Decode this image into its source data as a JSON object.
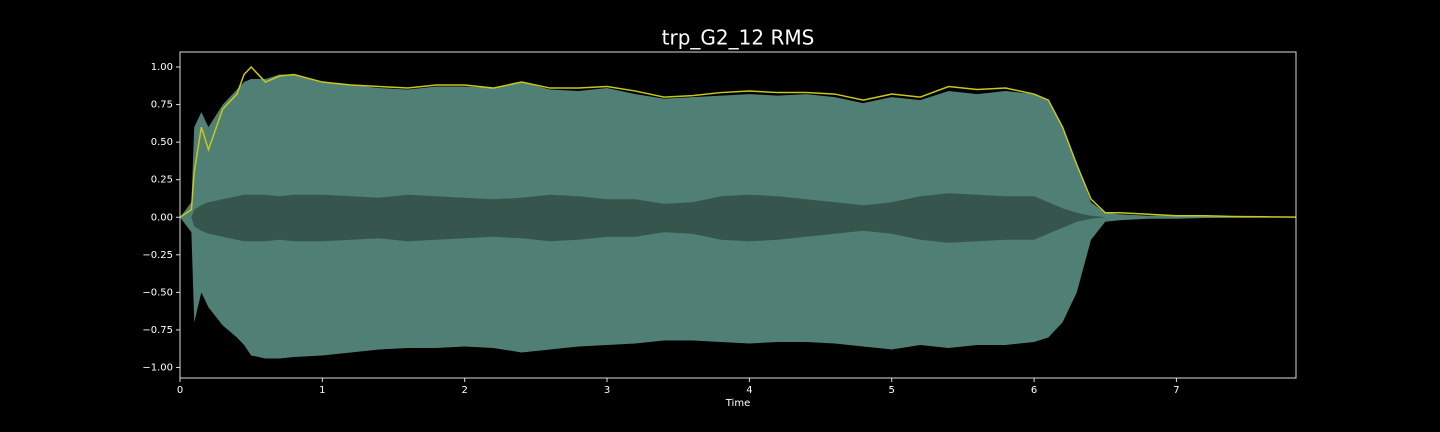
{
  "chart_data": {
    "type": "line",
    "title": "trp_G2_12 RMS",
    "x_label": "Time",
    "x": [
      0,
      0.08,
      0.1,
      0.15,
      0.2,
      0.3,
      0.4,
      0.45,
      0.5,
      0.6,
      0.7,
      0.8,
      1.0,
      1.2,
      1.4,
      1.6,
      1.8,
      2.0,
      2.2,
      2.4,
      2.6,
      2.8,
      3.0,
      3.2,
      3.4,
      3.6,
      3.8,
      4.0,
      4.2,
      4.4,
      4.6,
      4.8,
      5.0,
      5.2,
      5.4,
      5.6,
      5.8,
      6.0,
      6.1,
      6.2,
      6.3,
      6.4,
      6.5,
      6.6,
      6.8,
      7.0,
      7.2,
      7.4,
      7.6,
      7.84
    ],
    "xlim": [
      0,
      7.84
    ],
    "xticks": [
      0,
      1,
      2,
      3,
      4,
      5,
      6,
      7
    ],
    "ylim": [
      -1.07,
      1.1
    ],
    "yticks": [
      {
        "value": -1,
        "label": "−1.00"
      },
      {
        "value": -0.75,
        "label": "−0.75"
      },
      {
        "value": -0.5,
        "label": "−0.50"
      },
      {
        "value": -0.25,
        "label": "−0.25"
      },
      {
        "value": 0,
        "label": "0.00"
      },
      {
        "value": 0.25,
        "label": "0.25"
      },
      {
        "value": 0.5,
        "label": "0.50"
      },
      {
        "value": 0.75,
        "label": "0.75"
      },
      {
        "value": 1,
        "label": "1.00"
      }
    ],
    "grid": false,
    "bands": [
      {
        "color": "#4f7f75",
        "upper": [
          0,
          0.1,
          0.6,
          0.7,
          0.6,
          0.75,
          0.85,
          0.9,
          0.92,
          0.92,
          0.95,
          0.95,
          0.9,
          0.88,
          0.86,
          0.85,
          0.87,
          0.87,
          0.86,
          0.9,
          0.85,
          0.84,
          0.86,
          0.82,
          0.79,
          0.8,
          0.81,
          0.82,
          0.81,
          0.82,
          0.8,
          0.76,
          0.8,
          0.78,
          0.84,
          0.82,
          0.84,
          0.82,
          0.78,
          0.6,
          0.35,
          0.1,
          0.03,
          0.02,
          0.01,
          0.01,
          0.005,
          0.004,
          0.003,
          0.001
        ],
        "lower": [
          0,
          -0.1,
          -0.7,
          -0.5,
          -0.6,
          -0.72,
          -0.8,
          -0.85,
          -0.92,
          -0.94,
          -0.94,
          -0.93,
          -0.92,
          -0.9,
          -0.88,
          -0.87,
          -0.87,
          -0.86,
          -0.87,
          -0.9,
          -0.88,
          -0.86,
          -0.85,
          -0.84,
          -0.82,
          -0.82,
          -0.83,
          -0.84,
          -0.83,
          -0.83,
          -0.84,
          -0.86,
          -0.88,
          -0.85,
          -0.87,
          -0.85,
          -0.85,
          -0.83,
          -0.8,
          -0.7,
          -0.5,
          -0.15,
          -0.03,
          -0.02,
          -0.01,
          -0.01,
          -0.005,
          -0.004,
          -0.003,
          -0.001
        ]
      },
      {
        "color": "#36564d",
        "upper": [
          0,
          0,
          0.05,
          0.08,
          0.1,
          0.12,
          0.14,
          0.15,
          0.15,
          0.15,
          0.14,
          0.15,
          0.15,
          0.14,
          0.13,
          0.15,
          0.14,
          0.13,
          0.12,
          0.13,
          0.15,
          0.14,
          0.12,
          0.12,
          0.09,
          0.1,
          0.14,
          0.15,
          0.14,
          0.12,
          0.1,
          0.08,
          0.1,
          0.14,
          0.16,
          0.15,
          0.14,
          0.14,
          0.1,
          0.06,
          0.03,
          0.01,
          0,
          0,
          0,
          0,
          0,
          0,
          0,
          0
        ],
        "lower": [
          0,
          0,
          -0.06,
          -0.09,
          -0.11,
          -0.13,
          -0.15,
          -0.16,
          -0.16,
          -0.16,
          -0.15,
          -0.16,
          -0.16,
          -0.15,
          -0.14,
          -0.16,
          -0.15,
          -0.14,
          -0.13,
          -0.14,
          -0.16,
          -0.15,
          -0.13,
          -0.13,
          -0.1,
          -0.11,
          -0.15,
          -0.16,
          -0.15,
          -0.13,
          -0.11,
          -0.09,
          -0.11,
          -0.15,
          -0.17,
          -0.16,
          -0.15,
          -0.15,
          -0.11,
          -0.07,
          -0.03,
          -0.01,
          0,
          0,
          0,
          0,
          0,
          0,
          0,
          0
        ]
      }
    ],
    "series": [
      {
        "color": "#c8c81a",
        "values": [
          0,
          0.05,
          0.3,
          0.6,
          0.45,
          0.72,
          0.82,
          0.95,
          1.0,
          0.9,
          0.94,
          0.95,
          0.9,
          0.88,
          0.87,
          0.86,
          0.88,
          0.88,
          0.86,
          0.9,
          0.86,
          0.86,
          0.87,
          0.84,
          0.8,
          0.81,
          0.83,
          0.84,
          0.83,
          0.83,
          0.82,
          0.78,
          0.82,
          0.8,
          0.87,
          0.85,
          0.86,
          0.82,
          0.78,
          0.6,
          0.35,
          0.12,
          0.03,
          0.03,
          0.02,
          0.01,
          0.01,
          0.005,
          0.003,
          0.001
        ]
      }
    ]
  }
}
